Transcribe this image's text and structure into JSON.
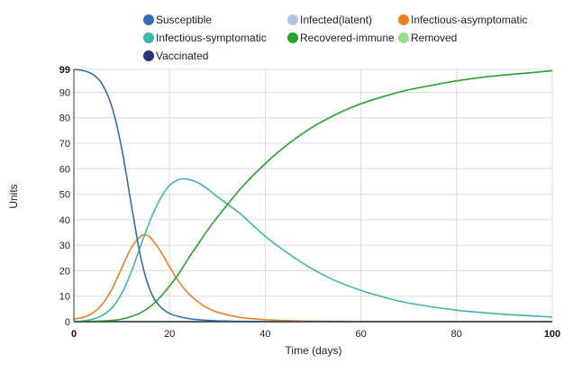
{
  "chart_data": {
    "type": "line",
    "title": "",
    "xlabel": "Time (days)",
    "ylabel": "Units",
    "xlim": [
      0,
      100
    ],
    "ylim": [
      0,
      99
    ],
    "x_ticks": [
      0,
      20,
      40,
      60,
      80,
      100
    ],
    "y_ticks": [
      0,
      10,
      20,
      30,
      40,
      50,
      60,
      70,
      80,
      90,
      99
    ],
    "grid": true,
    "legend_position": "top",
    "series": [
      {
        "name": "Susceptible",
        "color": "#2f6db5",
        "x": [
          0,
          2,
          4,
          6,
          8,
          10,
          12,
          14,
          16,
          18,
          20,
          22,
          24,
          26,
          28,
          30,
          35,
          40,
          50,
          60,
          80,
          100
        ],
        "y": [
          99,
          98.5,
          97,
          93,
          84,
          68,
          46,
          25,
          12,
          6,
          3.2,
          2,
          1.2,
          0.8,
          0.5,
          0.3,
          0.1,
          0.05,
          0.02,
          0,
          0,
          0
        ]
      },
      {
        "name": "Infected(latent)",
        "color": "#aec7e8",
        "x": [
          0,
          100
        ],
        "y": [
          0,
          0
        ]
      },
      {
        "name": "Infectious-asymptomatic",
        "color": "#f07f1f",
        "x": [
          0,
          2,
          4,
          6,
          8,
          10,
          12,
          14,
          15,
          16,
          18,
          20,
          22,
          24,
          26,
          28,
          30,
          35,
          40,
          45,
          50,
          60,
          80,
          100
        ],
        "y": [
          1,
          1.7,
          3.5,
          7,
          13,
          21,
          29,
          33.5,
          34,
          33,
          28,
          21.5,
          15.5,
          11,
          7.7,
          5.3,
          3.7,
          1.6,
          0.8,
          0.4,
          0.2,
          0.05,
          0,
          0
        ]
      },
      {
        "name": "Infectious-symptomatic",
        "color": "#3fb6a8",
        "x": [
          0,
          2,
          4,
          6,
          8,
          10,
          12,
          14,
          16,
          18,
          20,
          22,
          23,
          24,
          26,
          28,
          30,
          35,
          40,
          45,
          50,
          55,
          60,
          65,
          70,
          80,
          90,
          100
        ],
        "y": [
          0,
          0.3,
          1,
          2.5,
          5.5,
          11,
          19.5,
          30,
          40,
          48,
          53.5,
          55.8,
          56,
          55.8,
          54.5,
          52,
          49,
          42,
          33.5,
          26.5,
          20.5,
          15.8,
          12.3,
          9.5,
          7.3,
          4.5,
          2.9,
          1.8
        ]
      },
      {
        "name": "Recovered-immune",
        "color": "#2ca02c",
        "x": [
          0,
          4,
          8,
          10,
          12,
          14,
          16,
          18,
          20,
          22,
          24,
          26,
          28,
          30,
          35,
          40,
          45,
          50,
          55,
          60,
          65,
          70,
          75,
          80,
          85,
          90,
          95,
          100
        ],
        "y": [
          0,
          0.1,
          0.5,
          1,
          2,
          3.5,
          6,
          9.5,
          14,
          19,
          25,
          30.5,
          36,
          41,
          52.5,
          62,
          70,
          76.5,
          81.5,
          85.5,
          88.5,
          91,
          92.8,
          94.5,
          95.8,
          96.8,
          97.6,
          98.5
        ]
      },
      {
        "name": "Removed",
        "color": "#98df8a",
        "x": [
          0,
          100
        ],
        "y": [
          0,
          0
        ]
      },
      {
        "name": "Vaccinated",
        "color": "#2b3274",
        "x": [
          0,
          100
        ],
        "y": [
          0,
          0
        ]
      }
    ]
  }
}
